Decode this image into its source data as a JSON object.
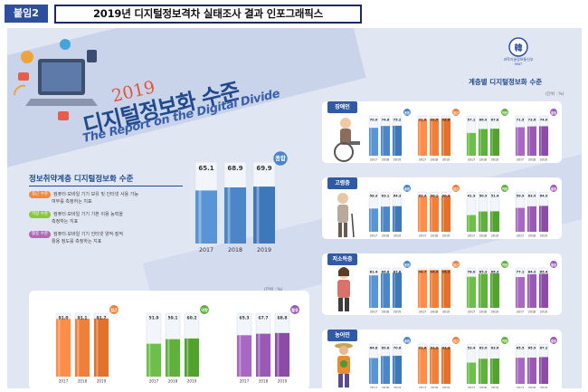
{
  "header": {
    "attachment_label": "붙임2",
    "title": "2019년 디지털정보격차 실태조사 결과 인포그래픽스"
  },
  "logo": {
    "name": "과학기술정보통신부",
    "text": "韓",
    "subtext": "MSIT"
  },
  "main_title": {
    "year": "2019",
    "korean": "디지털정보화 수준",
    "english": "The Report on the Digital Divide"
  },
  "sections": {
    "vulnerable_title": "정보취약계층 디지털정보화 수준",
    "group_title": "계층별 디지털정보화 수준",
    "unit": "(단위 : %)"
  },
  "definitions": [
    {
      "tag": "접근 수준",
      "text1": "컴퓨터·모바일 기기 보유 및 인터넷 사용 가능",
      "text2": "여부를 측정하는 지표",
      "color": "#f08a3c"
    },
    {
      "tag": "역량 수준",
      "text1": "컴퓨터·모바일 기기 기본 이용 능력을",
      "text2": "측정하는 지표",
      "color": "#8cc63f"
    },
    {
      "tag": "활용 수준",
      "text1": "컴퓨터·모바일 기기 인터넷 양적·질적",
      "text2": "활용 정도를 측정하는 지표",
      "color": "#b06ab3"
    }
  ],
  "colors": {
    "total": "#4a86c8",
    "access": "#f07f3a",
    "competence": "#5fb13c",
    "utilization": "#9b59b6"
  },
  "chart_data": [
    {
      "type": "bar",
      "title": "종합",
      "categories": [
        "2017",
        "2018",
        "2019"
      ],
      "values": [
        65.1,
        68.9,
        69.9
      ]
    },
    {
      "type": "bar",
      "title": "",
      "categories": [
        "2017",
        "2018",
        "2019"
      ],
      "series": [
        {
          "name": "접근",
          "values": [
            91.0,
            91.1,
            91.7
          ]
        },
        {
          "name": "역량",
          "values": [
            51.9,
            59.1,
            60.2
          ]
        },
        {
          "name": "활용",
          "values": [
            65.3,
            67.7,
            68.8
          ]
        }
      ]
    },
    {
      "type": "bar",
      "group": "장애인",
      "categories": [
        "2017",
        "2018",
        "2019"
      ],
      "series": [
        {
          "name": "종합",
          "values": [
            70.0,
            74.6,
            75.2
          ]
        },
        {
          "name": "접근",
          "values": [
            91.6,
            92.5,
            93.6
          ]
        },
        {
          "name": "역량",
          "values": [
            57.1,
            66.9,
            67.8
          ]
        },
        {
          "name": "활용",
          "values": [
            71.5,
            73.6,
            74.0
          ]
        }
      ]
    },
    {
      "type": "bar",
      "group": "고령층",
      "categories": [
        "2017",
        "2018",
        "2019"
      ],
      "series": [
        {
          "name": "종합",
          "values": [
            58.3,
            63.1,
            64.3
          ]
        },
        {
          "name": "접근",
          "values": [
            89.4,
            90.1,
            90.4
          ]
        },
        {
          "name": "역량",
          "values": [
            41.9,
            50.9,
            51.4
          ]
        },
        {
          "name": "활용",
          "values": [
            59.9,
            63.9,
            64.9
          ]
        }
      ]
    },
    {
      "type": "bar",
      "group": "저소득층",
      "categories": [
        "2017",
        "2018",
        "2019"
      ],
      "series": [
        {
          "name": "종합",
          "values": [
            81.4,
            86.8,
            87.8
          ]
        },
        {
          "name": "접근",
          "values": [
            94.7,
            94.9,
            95.3
          ]
        },
        {
          "name": "역량",
          "values": [
            78.0,
            85.3,
            86.3
          ]
        },
        {
          "name": "활용",
          "values": [
            77.1,
            84.2,
            85.4
          ]
        }
      ]
    },
    {
      "type": "bar",
      "group": "농어민",
      "categories": [
        "2017",
        "2018",
        "2019"
      ],
      "series": [
        {
          "name": "종합",
          "values": [
            64.8,
            69.8,
            70.6
          ]
        },
        {
          "name": "접근",
          "values": [
            91.6,
            91.0,
            91.3
          ]
        },
        {
          "name": "역량",
          "values": [
            53.4,
            63.0,
            63.6
          ]
        },
        {
          "name": "활용",
          "values": [
            65.5,
            65.9,
            67.2
          ]
        }
      ]
    }
  ]
}
